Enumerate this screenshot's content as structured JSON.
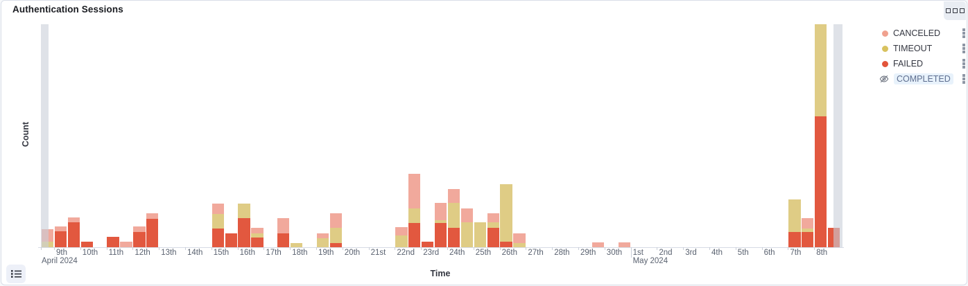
{
  "panel": {
    "title": "Authentication Sessions",
    "options_button_icon": "boxes-horizontal-icon",
    "legend_toggle_icon": "list-icon"
  },
  "legend": {
    "position": "right",
    "item_action_icon": "boxes-vertical-icon",
    "items": [
      {
        "label": "CANCELED",
        "color": "#F0A18F",
        "bar_color": "#F1A99C",
        "hidden": false
      },
      {
        "label": "TIMEOUT",
        "color": "#D8C25F",
        "bar_color": "#DFCC85",
        "hidden": false
      },
      {
        "label": "FAILED",
        "color": "#E2543A",
        "bar_color": "#E2583F",
        "hidden": false
      },
      {
        "label": "COMPLETED",
        "color": "#69707D",
        "bar_color": "#A6EDC5",
        "hidden": true,
        "icon": "eye-slash-icon",
        "text_color": "#5E6E8F",
        "highlight_bg": "#E8F2FB"
      }
    ]
  },
  "chart_data": {
    "type": "bar",
    "stacked": true,
    "title": "Authentication Sessions",
    "xlabel": "Time",
    "ylabel": "Count",
    "x_axis_type": "time",
    "bucket_hours": 12,
    "x_range_days": "2024-04-08 to 2024-05-09",
    "y_axis_tick_labels_visible": false,
    "ylim": [
      0,
      322
    ],
    "grid": false,
    "legend_position": "right",
    "series_bottom_to_top": [
      "FAILED",
      "TIMEOUT",
      "CANCELED"
    ],
    "x_tick_labels": [
      "9th",
      "10th",
      "11th",
      "12th",
      "13th",
      "14th",
      "15th",
      "16th",
      "17th",
      "18th",
      "19th",
      "20th",
      "21st",
      "22nd",
      "23rd",
      "24th",
      "25th",
      "26th",
      "27th",
      "28th",
      "29th",
      "30th",
      "1st",
      "2nd",
      "3rd",
      "4th",
      "5th",
      "6th",
      "7th",
      "8th"
    ],
    "month_labels": [
      {
        "label": "April 2024",
        "tick_index": 0,
        "at_left_edge": true
      },
      {
        "label": "May 2024",
        "tick_index": 22,
        "at_left_edge": false
      }
    ],
    "partial_bucket_markers": [
      "left",
      "right"
    ],
    "bars_note_t_units": "days since 2024-04-08 00:00, each bar is a 12h bucket",
    "bars": [
      {
        "t": 0.5,
        "FAILED": 0,
        "TIMEOUT": 8,
        "CANCELED": 18
      },
      {
        "t": 1.0,
        "FAILED": 23,
        "TIMEOUT": 0,
        "CANCELED": 7
      },
      {
        "t": 1.5,
        "FAILED": 36,
        "TIMEOUT": 0,
        "CANCELED": 7
      },
      {
        "t": 2.0,
        "FAILED": 8,
        "TIMEOUT": 0,
        "CANCELED": 0
      },
      {
        "t": 3.0,
        "FAILED": 15,
        "TIMEOUT": 0,
        "CANCELED": 0
      },
      {
        "t": 3.5,
        "FAILED": 0,
        "TIMEOUT": 0,
        "CANCELED": 8
      },
      {
        "t": 4.0,
        "FAILED": 22,
        "TIMEOUT": 0,
        "CANCELED": 8
      },
      {
        "t": 4.5,
        "FAILED": 41,
        "TIMEOUT": 0,
        "CANCELED": 8
      },
      {
        "t": 7.0,
        "FAILED": 27,
        "TIMEOUT": 21,
        "CANCELED": 15
      },
      {
        "t": 7.5,
        "FAILED": 20,
        "TIMEOUT": 0,
        "CANCELED": 0
      },
      {
        "t": 8.0,
        "FAILED": 42,
        "TIMEOUT": 21,
        "CANCELED": 0
      },
      {
        "t": 8.5,
        "FAILED": 14,
        "TIMEOUT": 6,
        "CANCELED": 8
      },
      {
        "t": 9.5,
        "FAILED": 20,
        "TIMEOUT": 0,
        "CANCELED": 22
      },
      {
        "t": 10.0,
        "FAILED": 0,
        "TIMEOUT": 6,
        "CANCELED": 0
      },
      {
        "t": 11.0,
        "FAILED": 0,
        "TIMEOUT": 13,
        "CANCELED": 7
      },
      {
        "t": 11.5,
        "FAILED": 6,
        "TIMEOUT": 22,
        "CANCELED": 21
      },
      {
        "t": 14.0,
        "FAILED": 0,
        "TIMEOUT": 17,
        "CANCELED": 12
      },
      {
        "t": 14.5,
        "FAILED": 35,
        "TIMEOUT": 21,
        "CANCELED": 50
      },
      {
        "t": 15.0,
        "FAILED": 8,
        "TIMEOUT": 0,
        "CANCELED": 0
      },
      {
        "t": 15.5,
        "FAILED": 35,
        "TIMEOUT": 4,
        "CANCELED": 25
      },
      {
        "t": 16.0,
        "FAILED": 28,
        "TIMEOUT": 36,
        "CANCELED": 20
      },
      {
        "t": 16.5,
        "FAILED": 0,
        "TIMEOUT": 36,
        "CANCELED": 20
      },
      {
        "t": 17.0,
        "FAILED": 0,
        "TIMEOUT": 36,
        "CANCELED": 0
      },
      {
        "t": 17.5,
        "FAILED": 28,
        "TIMEOUT": 8,
        "CANCELED": 13
      },
      {
        "t": 18.0,
        "FAILED": 8,
        "TIMEOUT": 83,
        "CANCELED": 0
      },
      {
        "t": 18.5,
        "FAILED": 0,
        "TIMEOUT": 6,
        "CANCELED": 14
      },
      {
        "t": 21.5,
        "FAILED": 0,
        "TIMEOUT": 0,
        "CANCELED": 7
      },
      {
        "t": 22.5,
        "FAILED": 0,
        "TIMEOUT": 0,
        "CANCELED": 7
      },
      {
        "t": 29.0,
        "FAILED": 22,
        "TIMEOUT": 47,
        "CANCELED": 0
      },
      {
        "t": 29.5,
        "FAILED": 22,
        "TIMEOUT": 5,
        "CANCELED": 15
      },
      {
        "t": 30.0,
        "FAILED": 189,
        "TIMEOUT": 133,
        "CANCELED": 0
      },
      {
        "t": 30.5,
        "FAILED": 28,
        "TIMEOUT": 0,
        "CANCELED": 0
      }
    ]
  }
}
